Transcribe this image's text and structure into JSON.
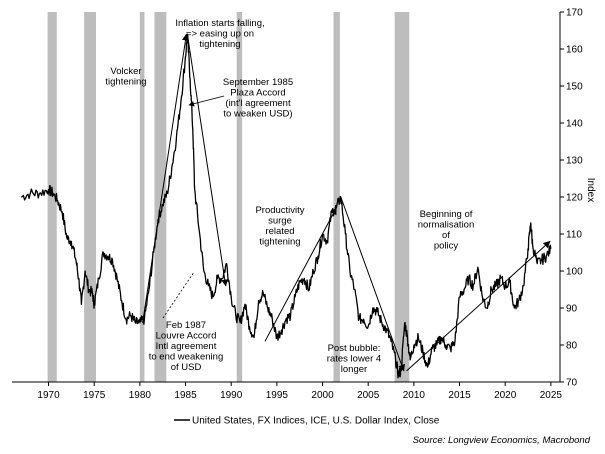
{
  "chart_data": {
    "type": "line",
    "title": "",
    "xlabel": "",
    "ylabel": "Index",
    "xlim": [
      1966,
      2026
    ],
    "ylim": [
      70,
      170
    ],
    "xticks": [
      1970,
      1975,
      1980,
      1985,
      1990,
      1995,
      2000,
      2005,
      2010,
      2015,
      2020,
      2025
    ],
    "yticks": [
      70,
      80,
      90,
      100,
      110,
      120,
      130,
      140,
      150,
      160,
      170
    ],
    "grid": false,
    "recessions": [
      [
        1969.9,
        1970.9
      ],
      [
        1973.9,
        1975.2
      ],
      [
        1980.0,
        1980.5
      ],
      [
        1981.6,
        1982.9
      ],
      [
        1990.6,
        1991.2
      ],
      [
        2001.2,
        2001.9
      ],
      [
        2007.9,
        2009.5
      ]
    ],
    "series": [
      {
        "name": "United States, FX Indices, ICE, U.S. Dollar Index, Close",
        "color": "#000000",
        "x": [
          1967.0,
          1968.0,
          1969.0,
          1970.0,
          1970.5,
          1971.0,
          1971.5,
          1972.0,
          1972.5,
          1973.0,
          1973.3,
          1973.6,
          1974.0,
          1974.4,
          1974.8,
          1975.0,
          1975.5,
          1976.0,
          1976.5,
          1977.0,
          1977.5,
          1978.0,
          1978.5,
          1979.0,
          1979.5,
          1980.0,
          1980.5,
          1981.0,
          1981.5,
          1982.0,
          1982.5,
          1983.0,
          1983.5,
          1984.0,
          1984.5,
          1985.0,
          1985.2,
          1985.5,
          1985.8,
          1986.0,
          1986.5,
          1987.0,
          1987.5,
          1988.0,
          1988.5,
          1989.0,
          1989.5,
          1990.0,
          1990.5,
          1991.0,
          1991.5,
          1992.0,
          1992.5,
          1993.0,
          1993.5,
          1994.0,
          1994.5,
          1995.0,
          1995.5,
          1996.0,
          1996.5,
          1997.0,
          1997.5,
          1998.0,
          1998.5,
          1999.0,
          1999.5,
          2000.0,
          2000.5,
          2001.0,
          2001.5,
          2002.0,
          2002.5,
          2003.0,
          2003.5,
          2004.0,
          2004.5,
          2005.0,
          2005.5,
          2006.0,
          2006.5,
          2007.0,
          2007.5,
          2008.0,
          2008.3,
          2008.6,
          2009.0,
          2009.3,
          2009.6,
          2010.0,
          2010.5,
          2011.0,
          2011.5,
          2012.0,
          2012.5,
          2013.0,
          2013.5,
          2014.0,
          2014.5,
          2015.0,
          2015.5,
          2016.0,
          2016.5,
          2017.0,
          2017.5,
          2018.0,
          2018.5,
          2019.0,
          2019.5,
          2020.0,
          2020.5,
          2021.0,
          2021.5,
          2022.0,
          2022.5,
          2022.8,
          2023.0,
          2023.5,
          2024.0,
          2024.5,
          2025.0
        ],
        "values": [
          120,
          121,
          121,
          122,
          121,
          119,
          116,
          109,
          108,
          103,
          98,
          91,
          100,
          95,
          94,
          91,
          98,
          105,
          104,
          103,
          98,
          92,
          87,
          88,
          86,
          86,
          87,
          95,
          105,
          114,
          118,
          121,
          128,
          136,
          146,
          158,
          164,
          152,
          138,
          122,
          111,
          100,
          96,
          93,
          98,
          98,
          102,
          93,
          88,
          86,
          91,
          85,
          82,
          92,
          94,
          90,
          87,
          82,
          84,
          87,
          88,
          93,
          97,
          98,
          95,
          100,
          104,
          110,
          108,
          116,
          117,
          120,
          110,
          100,
          95,
          87,
          87,
          85,
          90,
          89,
          86,
          84,
          81,
          76,
          72,
          73,
          86,
          82,
          76,
          80,
          82,
          78,
          74,
          79,
          80,
          82,
          80,
          79,
          81,
          93,
          95,
          98,
          96,
          101,
          93,
          90,
          95,
          96,
          98,
          96,
          97,
          90,
          92,
          96,
          106,
          113,
          107,
          102,
          103,
          104,
          106
        ]
      }
    ],
    "annotations": [
      {
        "lines": [
          "Inflation starts falling,",
          "=> easing up on",
          "tightening"
        ]
      },
      {
        "lines": [
          "Volcker",
          "tightening"
        ]
      },
      {
        "lines": [
          "September 1985",
          "Plaza Accord",
          "(int'l agreement",
          "to weaken USD)"
        ]
      },
      {
        "lines": [
          "Productivity",
          "surge",
          "related",
          "tightening"
        ]
      },
      {
        "lines": [
          "Beginning of",
          "normalisation",
          "of",
          "policy"
        ]
      },
      {
        "lines": [
          "Feb 1987",
          "Louvre Accord",
          "Intl agreement",
          "to end weakening",
          "of USD"
        ]
      },
      {
        "lines": [
          "Post bubble:",
          "rates lower 4",
          "longer"
        ]
      }
    ],
    "legend": {
      "position": "bottom-left",
      "label": "United States, FX Indices, ICE, U.S. Dollar Index, Close"
    },
    "source": "Source: Longview Economics, Macrobond"
  }
}
